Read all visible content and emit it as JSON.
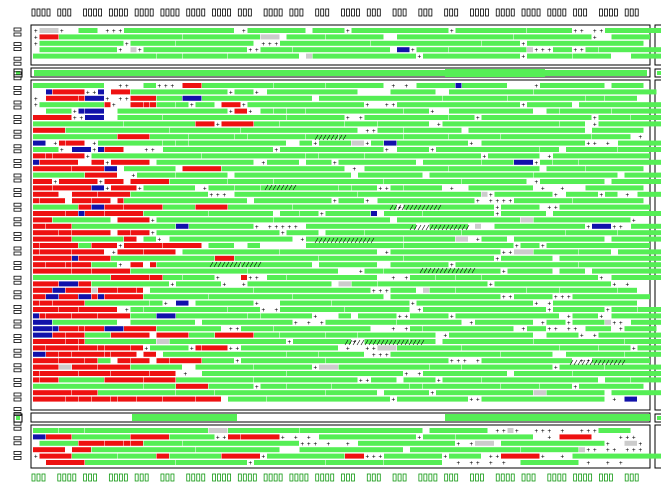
{
  "colors": {
    "background": "#ffffff",
    "frame": "#000000",
    "live": "#55ee55",
    "red": "#ee1111",
    "blue": "#1111aa",
    "grey": "#cccccc",
    "mark": "#000000",
    "glyph_top": "#000000",
    "glyph_bottom": "#119911"
  },
  "panels": [
    "top-panel",
    "main-panel",
    "bottom-panel"
  ],
  "dividers": [
    "divider-upper",
    "divider-lower"
  ],
  "top_labels_count": 24,
  "bottom_labels_count": 24,
  "left_labels_count": 30,
  "corner_glyph": "□",
  "random_seed": 7
}
